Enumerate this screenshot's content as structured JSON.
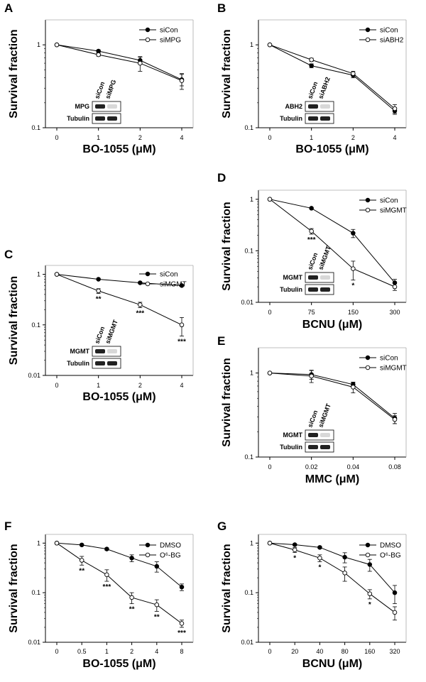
{
  "figure": {
    "panels": [
      {
        "letter": "A",
        "chart_data": {
          "type": "line",
          "xlabel": "BO-1055 (μM)",
          "ylabel": "Survival fraction",
          "yscale": "log",
          "ylim": [
            0.1,
            2
          ],
          "yticks": [
            "1",
            "0.1"
          ],
          "x": [
            "0",
            "1",
            "2",
            "4"
          ],
          "series": [
            {
              "name": "siCon",
              "marker": "filled",
              "values": [
                1.0,
                0.84,
                0.65,
                0.38
              ],
              "errors": [
                0,
                0.03,
                0.06,
                0.06
              ]
            },
            {
              "name": "siMPG",
              "marker": "open",
              "values": [
                1.0,
                0.76,
                0.6,
                0.37
              ],
              "errors": [
                0,
                0.03,
                0.12,
                0.08
              ]
            }
          ],
          "significance": [],
          "blot": {
            "lanes": [
              "siCon",
              "siMPG"
            ],
            "rows": [
              "MPG",
              "Tubulin"
            ]
          }
        }
      },
      {
        "letter": "B",
        "chart_data": {
          "type": "line",
          "xlabel": "BO-1055 (μM)",
          "ylabel": "Survival fraction",
          "yscale": "log",
          "ylim": [
            0.1,
            2
          ],
          "yticks": [
            "1",
            "0.1"
          ],
          "x": [
            "0",
            "1",
            "2",
            "4"
          ],
          "series": [
            {
              "name": "siCon",
              "marker": "filled",
              "values": [
                1.0,
                0.56,
                0.43,
                0.16
              ],
              "errors": [
                0,
                0.03,
                0.03,
                0.015
              ]
            },
            {
              "name": "siABH2",
              "marker": "open",
              "values": [
                1.0,
                0.66,
                0.45,
                0.17
              ],
              "errors": [
                0,
                0.03,
                0.03,
                0.02
              ]
            }
          ],
          "significance": [
            {
              "x_index": 1,
              "text": "*"
            }
          ],
          "blot": {
            "lanes": [
              "siCon",
              "siABH2"
            ],
            "rows": [
              "ABH2",
              "Tubulin"
            ]
          }
        }
      },
      {
        "letter": "C",
        "chart_data": {
          "type": "line",
          "xlabel": "BO-1055 (μM)",
          "ylabel": "Survival fraction",
          "yscale": "log",
          "ylim": [
            0.01,
            1.5
          ],
          "yticks": [
            "1",
            "0.1",
            "0.01"
          ],
          "x": [
            "0",
            "1",
            "2",
            "4"
          ],
          "series": [
            {
              "name": "siCon",
              "marker": "filled",
              "values": [
                1.0,
                0.8,
                0.68,
                0.6
              ],
              "errors": [
                0,
                0.02,
                0.02,
                0.02
              ]
            },
            {
              "name": "siMGMT",
              "marker": "open",
              "values": [
                1.0,
                0.47,
                0.25,
                0.1
              ],
              "errors": [
                0,
                0.05,
                0.03,
                0.04
              ]
            }
          ],
          "significance": [
            {
              "x_index": 1,
              "text": "**"
            },
            {
              "x_index": 2,
              "text": "***"
            },
            {
              "x_index": 3,
              "text": "***"
            }
          ],
          "blot": {
            "lanes": [
              "siCon",
              "siMGMT"
            ],
            "rows": [
              "MGMT",
              "Tubulin"
            ]
          }
        }
      },
      {
        "letter": "D",
        "chart_data": {
          "type": "line",
          "xlabel": "BCNU (μM)",
          "ylabel": "Survival fraction",
          "yscale": "log",
          "ylim": [
            0.01,
            1.5
          ],
          "yticks": [
            "1",
            "0.1",
            "0.01"
          ],
          "x": [
            "0",
            "75",
            "150",
            "300"
          ],
          "series": [
            {
              "name": "siCon",
              "marker": "filled",
              "values": [
                1.0,
                0.67,
                0.22,
                0.024
              ],
              "errors": [
                0,
                0.02,
                0.04,
                0.004
              ]
            },
            {
              "name": "siMGMT",
              "marker": "open",
              "values": [
                1.0,
                0.24,
                0.045,
                0.02
              ],
              "errors": [
                0,
                0.03,
                0.018,
                0.003
              ]
            }
          ],
          "significance": [
            {
              "x_index": 1,
              "text": "***"
            },
            {
              "x_index": 2,
              "text": "*"
            }
          ],
          "blot": {
            "lanes": [
              "siCon",
              "siMGMT"
            ],
            "rows": [
              "MGMT",
              "Tubulin"
            ]
          }
        }
      },
      {
        "letter": "E",
        "chart_data": {
          "type": "line",
          "xlabel": "MMC (μM)",
          "ylabel": "Survival fraction",
          "yscale": "log",
          "ylim": [
            0.1,
            2
          ],
          "yticks": [
            "1",
            "0.1"
          ],
          "x": [
            "0",
            "0.02",
            "0.04",
            "0.08"
          ],
          "series": [
            {
              "name": "siCon",
              "marker": "filled",
              "values": [
                1.0,
                0.96,
                0.73,
                0.29
              ],
              "errors": [
                0,
                0.12,
                0.04,
                0.04
              ]
            },
            {
              "name": "siMGMT",
              "marker": "open",
              "values": [
                1.0,
                0.92,
                0.68,
                0.28
              ],
              "errors": [
                0,
                0.15,
                0.1,
                0.03
              ]
            }
          ],
          "significance": [],
          "blot": {
            "lanes": [
              "siCon",
              "siMGMT"
            ],
            "rows": [
              "MGMT",
              "Tubulin"
            ]
          }
        }
      },
      {
        "letter": "F",
        "chart_data": {
          "type": "line",
          "xlabel": "BO-1055 (μM)",
          "ylabel": "Survival fraction",
          "yscale": "log",
          "ylim": [
            0.01,
            1.5
          ],
          "yticks": [
            "1",
            "0.1",
            "0.01"
          ],
          "x": [
            "0",
            "0.5",
            "1",
            "2",
            "4",
            "8"
          ],
          "series": [
            {
              "name": "DMSO",
              "marker": "filled",
              "values": [
                1.0,
                0.92,
                0.76,
                0.5,
                0.34,
                0.13
              ],
              "errors": [
                0,
                0.03,
                0.04,
                0.08,
                0.08,
                0.02
              ]
            },
            {
              "name": "O⁶-BG",
              "marker": "open",
              "values": [
                1.0,
                0.45,
                0.23,
                0.08,
                0.057,
                0.024
              ],
              "errors": [
                0,
                0.09,
                0.06,
                0.02,
                0.015,
                0.004
              ]
            }
          ],
          "significance": [
            {
              "x_index": 1,
              "text": "**"
            },
            {
              "x_index": 2,
              "text": "***"
            },
            {
              "x_index": 3,
              "text": "**"
            },
            {
              "x_index": 4,
              "text": "**"
            },
            {
              "x_index": 5,
              "text": "***"
            }
          ],
          "blot": null
        }
      },
      {
        "letter": "G",
        "chart_data": {
          "type": "line",
          "xlabel": "BCNU (μM)",
          "ylabel": "Survival fraction",
          "yscale": "log",
          "ylim": [
            0.01,
            1.5
          ],
          "yticks": [
            "1",
            "0.1",
            "0.01"
          ],
          "x": [
            "0",
            "20",
            "40",
            "80",
            "160",
            "320"
          ],
          "series": [
            {
              "name": "DMSO",
              "marker": "filled",
              "values": [
                1.0,
                0.93,
                0.82,
                0.52,
                0.37,
                0.1
              ],
              "errors": [
                0,
                0.04,
                0.04,
                0.12,
                0.1,
                0.04
              ]
            },
            {
              "name": "O⁶-BG",
              "marker": "open",
              "values": [
                1.0,
                0.73,
                0.5,
                0.25,
                0.095,
                0.04
              ],
              "errors": [
                0,
                0.08,
                0.08,
                0.08,
                0.02,
                0.012
              ]
            }
          ],
          "significance": [
            {
              "x_index": 1,
              "text": "*"
            },
            {
              "x_index": 2,
              "text": "*"
            },
            {
              "x_index": 4,
              "text": "*"
            }
          ],
          "blot": null
        }
      }
    ]
  }
}
